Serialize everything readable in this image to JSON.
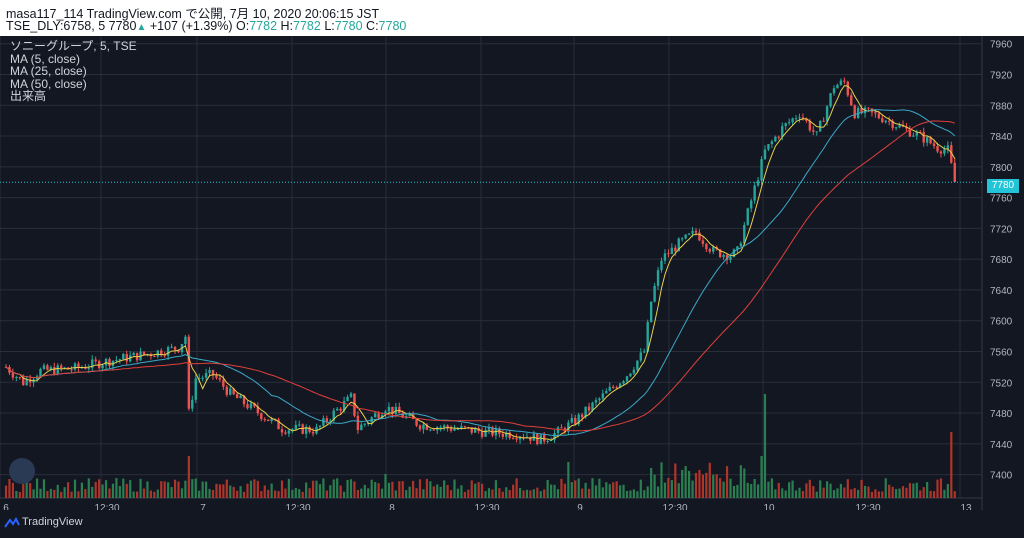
{
  "header": {
    "line1": "masa117_114 TradingView.com で公開, 7月 10, 2020 20:06:15 JST",
    "symbol": "TSE_DLY:6758, 5",
    "last": "7780",
    "change": "+107 (+1.39%)",
    "o_label": "O:",
    "o": "7782",
    "h_label": "H:",
    "h": "7782",
    "l_label": "L:",
    "l": "7780",
    "c_label": "C:",
    "c": "7780"
  },
  "legend": {
    "title": "ソニーグループ, 5, TSE",
    "ma5": "MA (5, close)",
    "ma25": "MA (25, close)",
    "ma50": "MA (50, close)",
    "volume": "出来高"
  },
  "price_badge": "7780",
  "brand": "TradingView",
  "chart_data": {
    "type": "candlestick",
    "title": "ソニーグループ, 5, TSE",
    "interval": "5 min",
    "ylim": [
      7380,
      7970
    ],
    "y_ticks": [
      7960,
      7920,
      7880,
      7840,
      7800,
      7760,
      7720,
      7680,
      7640,
      7600,
      7560,
      7520,
      7480,
      7440,
      7400
    ],
    "x_tick_labels": [
      "6",
      "12:30",
      "7",
      "12:30",
      "8",
      "12:30",
      "9",
      "12:30",
      "10",
      "12:30",
      "13"
    ],
    "current_price": 7780,
    "colors": {
      "up": "#26a69a",
      "down": "#ef5350",
      "ma5": "#e8d04a",
      "ma25": "#3aa9c9",
      "ma50": "#e0403a",
      "bg": "#131722",
      "grid": "#2a2e39"
    },
    "price_path": [
      [
        0,
        7540
      ],
      [
        5,
        7520
      ],
      [
        10,
        7535
      ],
      [
        20,
        7538
      ],
      [
        30,
        7548
      ],
      [
        40,
        7556
      ],
      [
        50,
        7565
      ],
      [
        52,
        7580
      ],
      [
        53,
        7480
      ],
      [
        55,
        7525
      ],
      [
        60,
        7530
      ],
      [
        65,
        7505
      ],
      [
        70,
        7490
      ],
      [
        80,
        7460
      ],
      [
        90,
        7458
      ],
      [
        95,
        7480
      ],
      [
        100,
        7500
      ],
      [
        102,
        7460
      ],
      [
        105,
        7470
      ],
      [
        110,
        7488
      ],
      [
        120,
        7465
      ],
      [
        130,
        7460
      ],
      [
        140,
        7455
      ],
      [
        150,
        7452
      ],
      [
        155,
        7445
      ],
      [
        160,
        7455
      ],
      [
        165,
        7470
      ],
      [
        170,
        7490
      ],
      [
        175,
        7510
      ],
      [
        180,
        7530
      ],
      [
        185,
        7560
      ],
      [
        187,
        7625
      ],
      [
        190,
        7680
      ],
      [
        195,
        7700
      ],
      [
        200,
        7715
      ],
      [
        205,
        7690
      ],
      [
        210,
        7685
      ],
      [
        212,
        7690
      ],
      [
        215,
        7740
      ],
      [
        220,
        7820
      ],
      [
        225,
        7850
      ],
      [
        230,
        7870
      ],
      [
        235,
        7840
      ],
      [
        240,
        7905
      ],
      [
        243,
        7910
      ],
      [
        246,
        7870
      ],
      [
        250,
        7870
      ],
      [
        255,
        7862
      ],
      [
        260,
        7850
      ],
      [
        265,
        7840
      ],
      [
        270,
        7825
      ],
      [
        273,
        7822
      ],
      [
        275,
        7780
      ]
    ],
    "moving_averages": [
      {
        "name": "MA (5, close)",
        "color": "#e8d04a"
      },
      {
        "name": "MA (25, close)",
        "color": "#3aa9c9"
      },
      {
        "name": "MA (50, close)",
        "color": "#e0403a"
      }
    ],
    "volume_pane": {
      "label": "出来高",
      "ylim_relative": [
        0,
        1
      ]
    }
  }
}
